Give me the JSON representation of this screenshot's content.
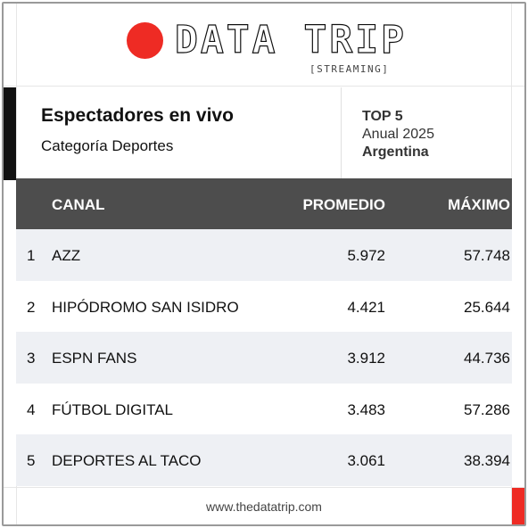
{
  "brand": {
    "name": "DATA TRIP",
    "tag": "[STREAMING]",
    "accent": "#ee2b24"
  },
  "header": {
    "title": "Espectadores en vivo",
    "subtitle": "Categoría Deportes",
    "rank_label": "TOP 5",
    "period": "Anual 2025",
    "country": "Argentina"
  },
  "table": {
    "columns": [
      "CANAL",
      "PROMEDIO",
      "MÁXIMO"
    ],
    "rows": [
      {
        "rank": "1",
        "channel": "AZZ",
        "average": "5.972",
        "max": "57.748"
      },
      {
        "rank": "2",
        "channel": "HIPÓDROMO SAN ISIDRO",
        "average": "4.421",
        "max": "25.644"
      },
      {
        "rank": "3",
        "channel": "ESPN FANS",
        "average": "3.912",
        "max": "44.736"
      },
      {
        "rank": "4",
        "channel": "FÚTBOL DIGITAL",
        "average": "3.483",
        "max": "57.286"
      },
      {
        "rank": "5",
        "channel": "DEPORTES AL TACO",
        "average": "3.061",
        "max": "38.394"
      }
    ]
  },
  "footer": {
    "url": "www.thedatatrip.com"
  }
}
